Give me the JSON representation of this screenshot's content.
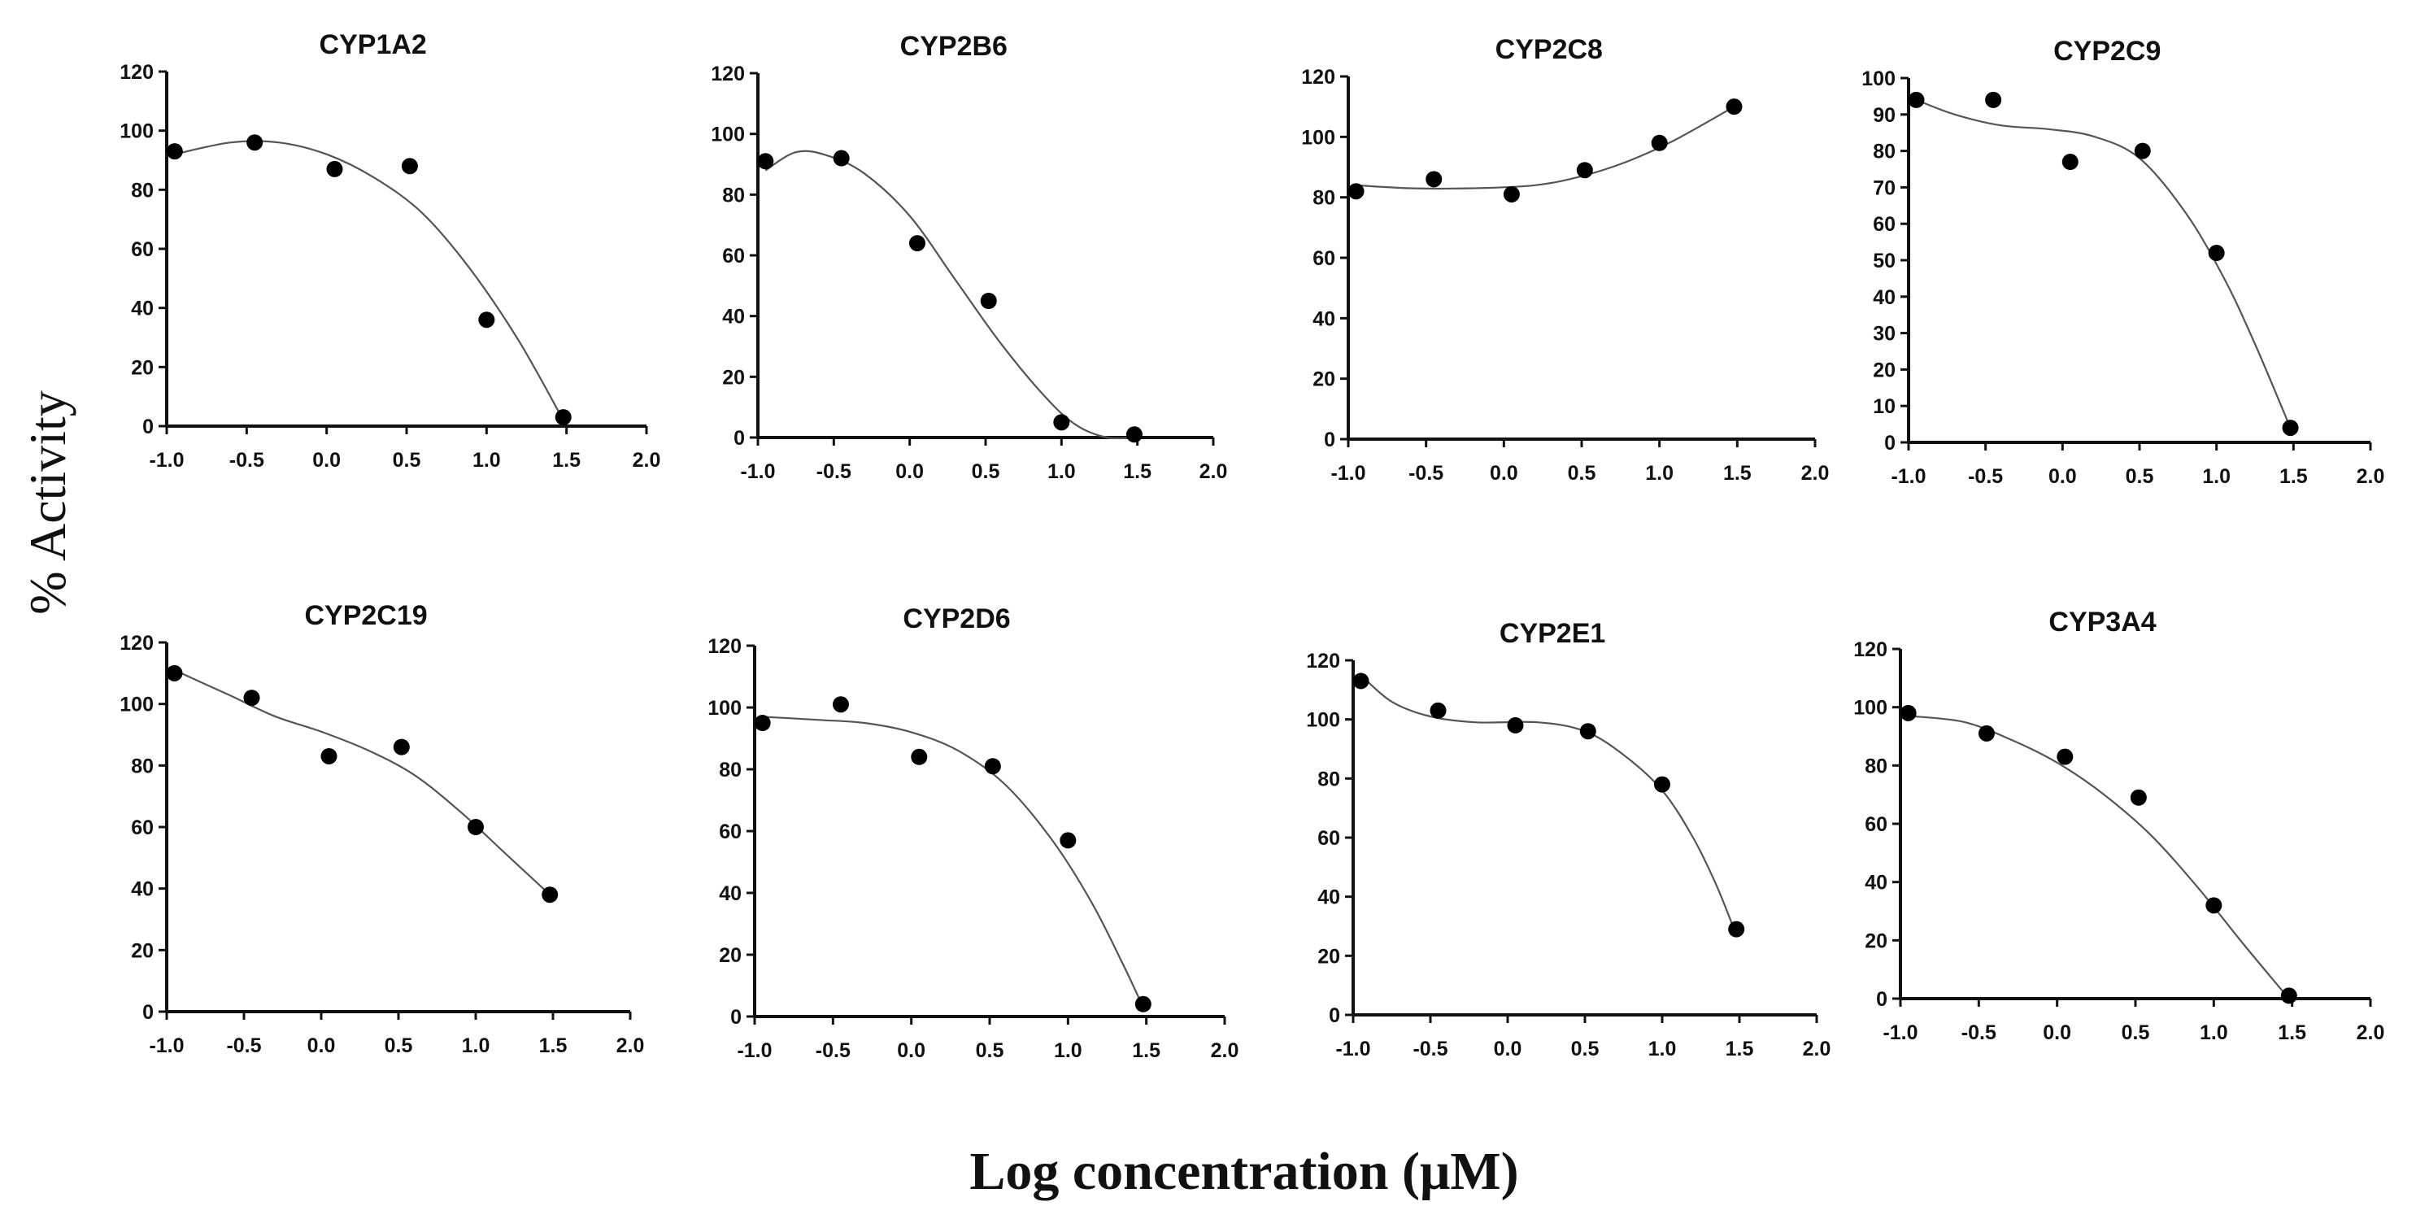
{
  "figure": {
    "ylabel": "% Activity",
    "xlabel": "Log concentration (μM)"
  },
  "chart_data": [
    {
      "type": "scatter",
      "title": "CYP1A2",
      "x": [
        -0.95,
        -0.45,
        0.05,
        0.52,
        1.0,
        1.48
      ],
      "y": [
        93,
        96,
        87,
        88,
        36,
        3
      ],
      "fit": [
        [
          -0.95,
          92
        ],
        [
          -0.6,
          96
        ],
        [
          -0.3,
          96
        ],
        [
          0.0,
          92
        ],
        [
          0.3,
          84
        ],
        [
          0.6,
          72
        ],
        [
          0.9,
          53
        ],
        [
          1.2,
          29
        ],
        [
          1.48,
          2
        ]
      ],
      "xlim": [
        -1.0,
        2.0
      ],
      "ylim": [
        0,
        120
      ],
      "xticks": [
        "-1.0",
        "-0.5",
        "0.0",
        "0.5",
        "1.0",
        "1.5",
        "2.0"
      ],
      "yticks": [
        "0",
        "20",
        "40",
        "60",
        "80",
        "100",
        "120"
      ]
    },
    {
      "type": "scatter",
      "title": "CYP2B6",
      "x": [
        -0.95,
        -0.45,
        0.05,
        0.52,
        1.0,
        1.48
      ],
      "y": [
        91,
        92,
        64,
        45,
        5,
        1
      ],
      "fit": [
        [
          -0.95,
          88
        ],
        [
          -0.75,
          94
        ],
        [
          -0.55,
          93
        ],
        [
          -0.3,
          87
        ],
        [
          0.0,
          73
        ],
        [
          0.3,
          52
        ],
        [
          0.6,
          31
        ],
        [
          0.9,
          13
        ],
        [
          1.1,
          4
        ],
        [
          1.3,
          0
        ],
        [
          1.48,
          0
        ]
      ],
      "xlim": [
        -1.0,
        2.0
      ],
      "ylim": [
        0,
        120
      ],
      "xticks": [
        "-1.0",
        "-0.5",
        "0.0",
        "0.5",
        "1.0",
        "1.5",
        "2.0"
      ],
      "yticks": [
        "0",
        "20",
        "40",
        "60",
        "80",
        "100",
        "120"
      ]
    },
    {
      "type": "scatter",
      "title": "CYP2C8",
      "x": [
        -0.95,
        -0.45,
        0.05,
        0.52,
        1.0,
        1.48
      ],
      "y": [
        82,
        86,
        81,
        89,
        98,
        110
      ],
      "fit": [
        [
          -0.95,
          84
        ],
        [
          -0.6,
          83
        ],
        [
          -0.2,
          83
        ],
        [
          0.2,
          84
        ],
        [
          0.5,
          87
        ],
        [
          0.8,
          92
        ],
        [
          1.1,
          99
        ],
        [
          1.48,
          110
        ]
      ],
      "xlim": [
        -1.0,
        2.0
      ],
      "ylim": [
        0,
        120
      ],
      "xticks": [
        "-1.0",
        "-0.5",
        "0.0",
        "0.5",
        "1.0",
        "1.5",
        "2.0"
      ],
      "yticks": [
        "0",
        "20",
        "40",
        "60",
        "80",
        "100",
        "120"
      ]
    },
    {
      "type": "scatter",
      "title": "CYP2C9",
      "x": [
        -0.95,
        -0.45,
        0.05,
        0.52,
        1.0,
        1.48
      ],
      "y": [
        94,
        94,
        77,
        80,
        52,
        4
      ],
      "fit": [
        [
          -0.95,
          94
        ],
        [
          -0.7,
          90
        ],
        [
          -0.4,
          87
        ],
        [
          -0.1,
          86
        ],
        [
          0.2,
          84
        ],
        [
          0.5,
          78
        ],
        [
          0.8,
          63
        ],
        [
          1.05,
          45
        ],
        [
          1.25,
          27
        ],
        [
          1.48,
          4
        ]
      ],
      "xlim": [
        -1.0,
        2.0
      ],
      "ylim": [
        0,
        100
      ],
      "xticks": [
        "-1.0",
        "-0.5",
        "0.0",
        "0.5",
        "1.0",
        "1.5",
        "2.0"
      ],
      "yticks": [
        "0",
        "10",
        "20",
        "30",
        "40",
        "50",
        "60",
        "70",
        "80",
        "90",
        "100"
      ]
    },
    {
      "type": "scatter",
      "title": "CYP2C19",
      "x": [
        -0.95,
        -0.45,
        0.05,
        0.52,
        1.0,
        1.48
      ],
      "y": [
        110,
        102,
        83,
        86,
        60,
        38
      ],
      "fit": [
        [
          -0.95,
          111
        ],
        [
          -0.6,
          103
        ],
        [
          -0.3,
          96
        ],
        [
          0.0,
          91
        ],
        [
          0.3,
          85
        ],
        [
          0.6,
          77
        ],
        [
          0.9,
          65
        ],
        [
          1.2,
          51
        ],
        [
          1.48,
          38
        ]
      ],
      "xlim": [
        -1.0,
        2.0
      ],
      "ylim": [
        0,
        120
      ],
      "xticks": [
        "-1.0",
        "-0.5",
        "0.0",
        "0.5",
        "1.0",
        "1.5",
        "2.0"
      ],
      "yticks": [
        "0",
        "20",
        "40",
        "60",
        "80",
        "100",
        "120"
      ]
    },
    {
      "type": "scatter",
      "title": "CYP2D6",
      "x": [
        -0.95,
        -0.45,
        0.05,
        0.52,
        1.0,
        1.48
      ],
      "y": [
        95,
        101,
        84,
        81,
        57,
        4
      ],
      "fit": [
        [
          -0.95,
          97
        ],
        [
          -0.6,
          96
        ],
        [
          -0.3,
          95
        ],
        [
          0.0,
          92
        ],
        [
          0.3,
          86
        ],
        [
          0.6,
          75
        ],
        [
          0.9,
          57
        ],
        [
          1.15,
          37
        ],
        [
          1.35,
          17
        ],
        [
          1.48,
          3
        ]
      ],
      "xlim": [
        -1.0,
        2.0
      ],
      "ylim": [
        0,
        120
      ],
      "xticks": [
        "-1.0",
        "-0.5",
        "0.0",
        "0.5",
        "1.0",
        "1.5",
        "2.0"
      ],
      "yticks": [
        "0",
        "20",
        "40",
        "60",
        "80",
        "100",
        "120"
      ]
    },
    {
      "type": "scatter",
      "title": "CYP2E1",
      "x": [
        -0.95,
        -0.45,
        0.05,
        0.52,
        1.0,
        1.48
      ],
      "y": [
        113,
        103,
        98,
        96,
        78,
        29
      ],
      "fit": [
        [
          -0.95,
          115
        ],
        [
          -0.75,
          106
        ],
        [
          -0.5,
          101
        ],
        [
          -0.2,
          99
        ],
        [
          0.2,
          99
        ],
        [
          0.5,
          96
        ],
        [
          0.75,
          88
        ],
        [
          1.0,
          76
        ],
        [
          1.2,
          60
        ],
        [
          1.35,
          44
        ],
        [
          1.48,
          27
        ]
      ],
      "xlim": [
        -1.0,
        2.0
      ],
      "ylim": [
        0,
        120
      ],
      "xticks": [
        "-1.0",
        "-0.5",
        "0.0",
        "0.5",
        "1.0",
        "1.5",
        "2.0"
      ],
      "yticks": [
        "0",
        "20",
        "40",
        "60",
        "80",
        "100",
        "120"
      ]
    },
    {
      "type": "scatter",
      "title": "CYP3A4",
      "x": [
        -0.95,
        -0.45,
        0.05,
        0.52,
        1.0,
        1.48
      ],
      "y": [
        98,
        91,
        83,
        69,
        32,
        1
      ],
      "fit": [
        [
          -0.95,
          97
        ],
        [
          -0.6,
          95
        ],
        [
          -0.3,
          89
        ],
        [
          0.0,
          81
        ],
        [
          0.3,
          70
        ],
        [
          0.6,
          56
        ],
        [
          0.9,
          38
        ],
        [
          1.2,
          18
        ],
        [
          1.48,
          0
        ]
      ],
      "xlim": [
        -1.0,
        2.0
      ],
      "ylim": [
        0,
        120
      ],
      "xticks": [
        "-1.0",
        "-0.5",
        "0.0",
        "0.5",
        "1.0",
        "1.5",
        "2.0"
      ],
      "yticks": [
        "0",
        "20",
        "40",
        "60",
        "80",
        "100",
        "120"
      ]
    }
  ]
}
